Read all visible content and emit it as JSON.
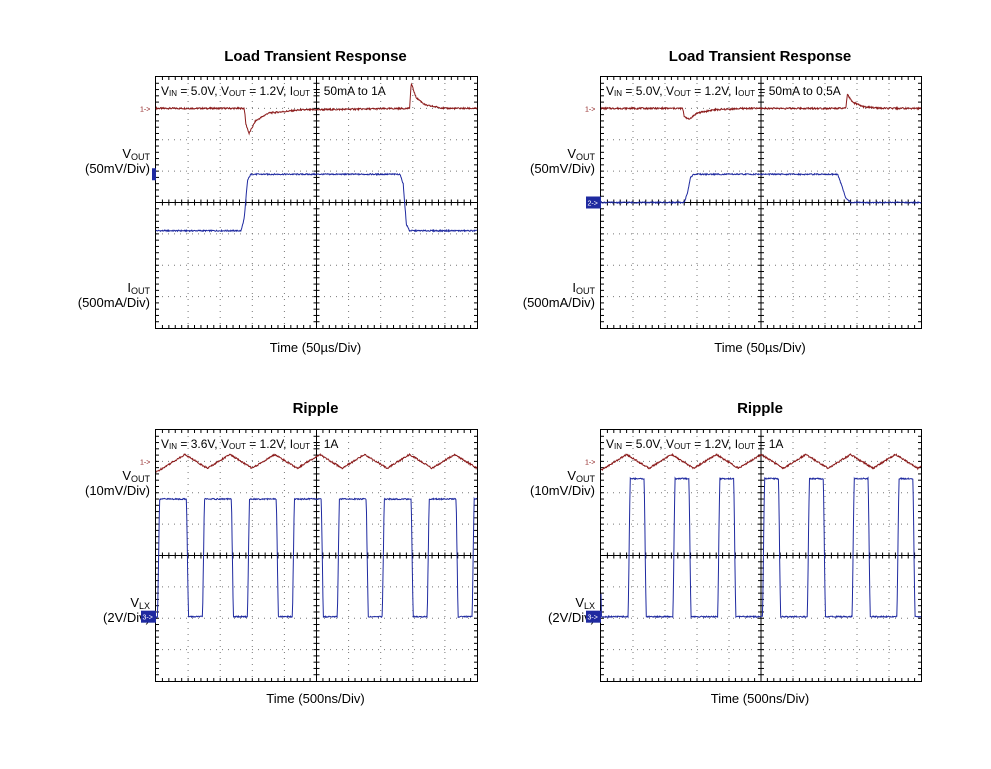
{
  "colors": {
    "ch1": "#8b1a1a",
    "ch2": "#1f2aa0",
    "marker": "#1f2aa0",
    "grid": "#777777"
  },
  "panels": [
    {
      "title": "Load Transient Response",
      "cond": {
        "vin": "5.0V",
        "vout": "1.2V",
        "iout": "50mA to 1A"
      },
      "ch1_label": {
        "main": "V",
        "sub": "OUT",
        "scale": "(50mV/Div)"
      },
      "ch2_label": {
        "main": "I",
        "sub": "OUT",
        "scale": "(500mA/Div)"
      },
      "ch2_marker": "2",
      "xlabel": "Time  (50µs/Div)"
    },
    {
      "title": "Load Transient Response",
      "cond": {
        "vin": "5.0V",
        "vout": "1.2V",
        "iout": "50mA to 0.5A"
      },
      "ch1_label": {
        "main": "V",
        "sub": "OUT",
        "scale": "(50mV/Div)"
      },
      "ch2_label": {
        "main": "I",
        "sub": "OUT",
        "scale": "(500mA/Div)"
      },
      "ch2_marker": "2->",
      "xlabel": "Time  (50µs/Div)"
    },
    {
      "title": "Ripple",
      "cond": {
        "vin": "3.6V",
        "vout": "1.2V",
        "iout": "1A"
      },
      "ch1_label": {
        "main": "V",
        "sub": "OUT",
        "scale": "(10mV/Div)"
      },
      "ch2_label": {
        "main": "V",
        "sub": "LX",
        "scale": "(2V/Div)"
      },
      "ch2_marker": "3->",
      "xlabel": "Time  (500ns/Div)"
    },
    {
      "title": "Ripple",
      "cond": {
        "vin": "5.0V",
        "vout": "1.2V",
        "iout": "1A"
      },
      "ch1_label": {
        "main": "V",
        "sub": "OUT",
        "scale": "(10mV/Div)"
      },
      "ch2_label": {
        "main": "V",
        "sub": "LX",
        "scale": "(2V/Div)"
      },
      "ch2_marker": "3->",
      "xlabel": "Time  (500ns/Div)"
    }
  ],
  "chart_data": [
    {
      "type": "line",
      "title": "Load Transient Response",
      "xlabel": "Time  (50µs/Div)",
      "xlim": [
        0,
        10
      ],
      "ylim": [
        -4,
        4
      ],
      "grid": true,
      "series": [
        {
          "name": "VOUT",
          "x": [
            0,
            2.75,
            2.8,
            2.9,
            3.1,
            3.5,
            4.5,
            7.9,
            7.95,
            8.1,
            8.4,
            9.0,
            10
          ],
          "y": [
            3.0,
            3.0,
            2.5,
            2.2,
            2.6,
            2.85,
            2.95,
            3.0,
            3.8,
            3.35,
            3.1,
            3.0,
            3.0
          ]
        },
        {
          "name": "IOUT",
          "x": [
            0,
            2.65,
            2.75,
            2.85,
            2.95,
            7.6,
            7.7,
            7.8,
            7.9,
            10
          ],
          "y": [
            -0.9,
            -0.9,
            -0.5,
            0.7,
            0.9,
            0.9,
            0.6,
            -0.7,
            -0.9,
            -0.9
          ]
        }
      ]
    },
    {
      "type": "line",
      "title": "Load Transient Response",
      "xlabel": "Time  (50µs/Div)",
      "xlim": [
        0,
        10
      ],
      "ylim": [
        -4,
        4
      ],
      "grid": true,
      "series": [
        {
          "name": "VOUT",
          "x": [
            0,
            2.55,
            2.6,
            2.75,
            3.0,
            3.5,
            4.5,
            7.65,
            7.7,
            7.85,
            8.2,
            8.8,
            10
          ],
          "y": [
            3.0,
            3.0,
            2.75,
            2.65,
            2.85,
            2.95,
            3.0,
            3.0,
            3.45,
            3.2,
            3.05,
            3.0,
            3.0
          ]
        },
        {
          "name": "IOUT",
          "x": [
            0,
            2.6,
            2.7,
            2.8,
            2.9,
            7.4,
            7.5,
            7.65,
            7.8,
            10
          ],
          "y": [
            0.0,
            0.0,
            0.3,
            0.8,
            0.9,
            0.9,
            0.6,
            0.15,
            0.0,
            0.0
          ]
        }
      ]
    },
    {
      "type": "line",
      "title": "Ripple",
      "xlabel": "Time  (500ns/Div)",
      "xlim": [
        0,
        10
      ],
      "ylim": [
        -4,
        4
      ],
      "grid": true,
      "series": [
        {
          "name": "VOUT",
          "ripple": {
            "center": 3.0,
            "amplitude": 0.22,
            "period_div": 1.4,
            "phase_div": 0.2
          }
        },
        {
          "name": "VLX",
          "pulse": {
            "low": -1.95,
            "high": 1.8,
            "period_div": 1.4,
            "first_rise_div": 0.05,
            "width_div": 0.9
          }
        }
      ]
    },
    {
      "type": "line",
      "title": "Ripple",
      "xlabel": "Time  (500ns/Div)",
      "xlim": [
        0,
        10
      ],
      "ylim": [
        -4,
        4
      ],
      "grid": true,
      "series": [
        {
          "name": "VOUT",
          "ripple": {
            "center": 3.0,
            "amplitude": 0.22,
            "period_div": 1.4,
            "phase_div": 0.1
          }
        },
        {
          "name": "VLX",
          "pulse": {
            "low": -1.95,
            "high": 2.45,
            "period_div": 1.4,
            "first_rise_div": 0.85,
            "width_div": 0.5
          }
        }
      ]
    }
  ]
}
